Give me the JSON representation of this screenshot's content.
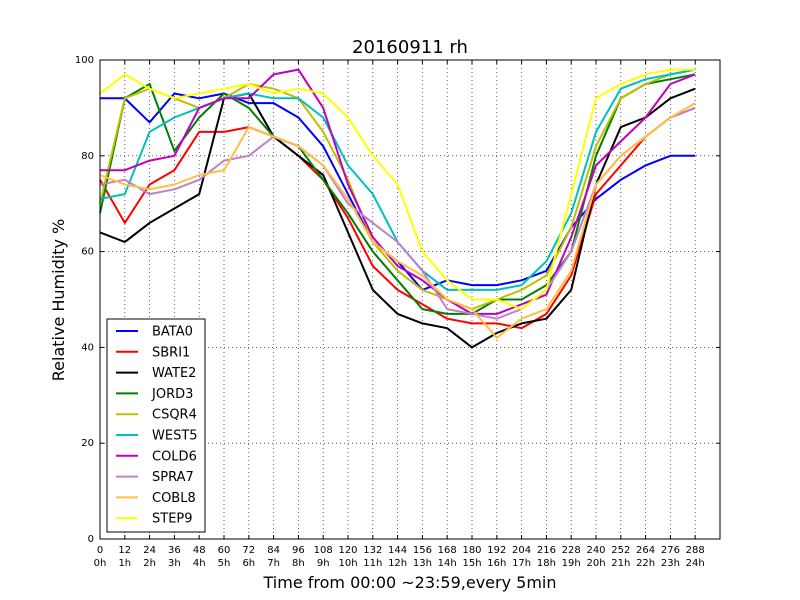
{
  "chart_data": {
    "type": "line",
    "title": "20160911 rh",
    "xlabel": "Time from 00:00 ~23:59,every 5min",
    "ylabel": "Relative Humidity %",
    "xlim": [
      0,
      300
    ],
    "ylim": [
      0,
      100
    ],
    "grid": true,
    "legend_position": "lower-left",
    "x_ticks": [
      0,
      12,
      24,
      36,
      48,
      60,
      72,
      84,
      96,
      108,
      120,
      132,
      144,
      156,
      168,
      180,
      192,
      204,
      216,
      228,
      240,
      252,
      264,
      276,
      288
    ],
    "x_tick_sublabels": [
      "0h",
      "1h",
      "2h",
      "3h",
      "4h",
      "5h",
      "6h",
      "7h",
      "8h",
      "9h",
      "10h",
      "11h",
      "12h",
      "13h",
      "14h",
      "15h",
      "16h",
      "17h",
      "18h",
      "19h",
      "20h",
      "21h",
      "22h",
      "23h",
      "24h"
    ],
    "y_ticks": [
      0,
      20,
      40,
      60,
      80,
      100
    ],
    "x": [
      0,
      12,
      24,
      36,
      48,
      60,
      72,
      84,
      96,
      108,
      120,
      132,
      144,
      156,
      168,
      180,
      192,
      204,
      216,
      228,
      240,
      252,
      264,
      276,
      288
    ],
    "series": [
      {
        "name": "BATA0",
        "color": "#0000ff",
        "values": [
          92,
          92,
          87,
          93,
          92,
          93,
          91,
          91,
          88,
          82,
          72,
          62,
          58,
          52,
          54,
          53,
          53,
          54,
          56,
          65,
          71,
          75,
          78,
          80,
          80
        ]
      },
      {
        "name": "SBRI1",
        "color": "#ff0000",
        "values": [
          75,
          66,
          74,
          77,
          85,
          85,
          86,
          84,
          80,
          75,
          67,
          57,
          52,
          49,
          46,
          45,
          45,
          44,
          47,
          55,
          72,
          78,
          84,
          88,
          90
        ]
      },
      {
        "name": "WATE2",
        "color": "#000000",
        "values": [
          64,
          62,
          66,
          69,
          72,
          92,
          93,
          84,
          80,
          76,
          64,
          52,
          47,
          45,
          44,
          40,
          43,
          45,
          46,
          52,
          74,
          86,
          88,
          92,
          94
        ]
      },
      {
        "name": "JORD3",
        "color": "#008000",
        "values": [
          68,
          92,
          95,
          81,
          88,
          93,
          90,
          84,
          82,
          75,
          68,
          60,
          54,
          48,
          47,
          47,
          50,
          50,
          53,
          60,
          80,
          92,
          95,
          96,
          97
        ]
      },
      {
        "name": "CSQR4",
        "color": "#bfbf00",
        "values": [
          70,
          92,
          94,
          92,
          90,
          92,
          95,
          94,
          92,
          85,
          75,
          62,
          56,
          52,
          50,
          48,
          50,
          52,
          55,
          65,
          82,
          92,
          95,
          97,
          98
        ]
      },
      {
        "name": "WEST5",
        "color": "#00bfbf",
        "values": [
          71,
          72,
          85,
          88,
          90,
          92,
          93,
          92,
          92,
          88,
          78,
          72,
          62,
          56,
          52,
          52,
          52,
          53,
          58,
          68,
          85,
          94,
          96,
          97,
          98
        ]
      },
      {
        "name": "COLD6",
        "color": "#bf00bf",
        "values": [
          77,
          77,
          79,
          80,
          90,
          92,
          92,
          97,
          98,
          90,
          74,
          63,
          57,
          54,
          50,
          47,
          47,
          49,
          51,
          63,
          78,
          83,
          88,
          95,
          97
        ]
      },
      {
        "name": "SPRA7",
        "color": "#bf80d0",
        "values": [
          74,
          75,
          72,
          73,
          75,
          79,
          80,
          84,
          82,
          78,
          70,
          66,
          62,
          56,
          48,
          47,
          46,
          48,
          52,
          60,
          74,
          80,
          84,
          88,
          90
        ]
      },
      {
        "name": "COBL8",
        "color": "#ffbf40",
        "values": [
          76,
          74,
          73,
          74,
          76,
          77,
          86,
          84,
          82,
          78,
          71,
          62,
          58,
          55,
          50,
          48,
          42,
          46,
          48,
          56,
          74,
          80,
          84,
          88,
          91
        ]
      },
      {
        "name": "STEP9",
        "color": "#ffff00",
        "values": [
          93,
          97,
          94,
          92,
          93,
          94,
          95,
          93,
          94,
          93,
          88,
          80,
          74,
          60,
          54,
          50,
          50,
          48,
          52,
          72,
          92,
          95,
          97,
          98,
          98
        ]
      }
    ]
  }
}
